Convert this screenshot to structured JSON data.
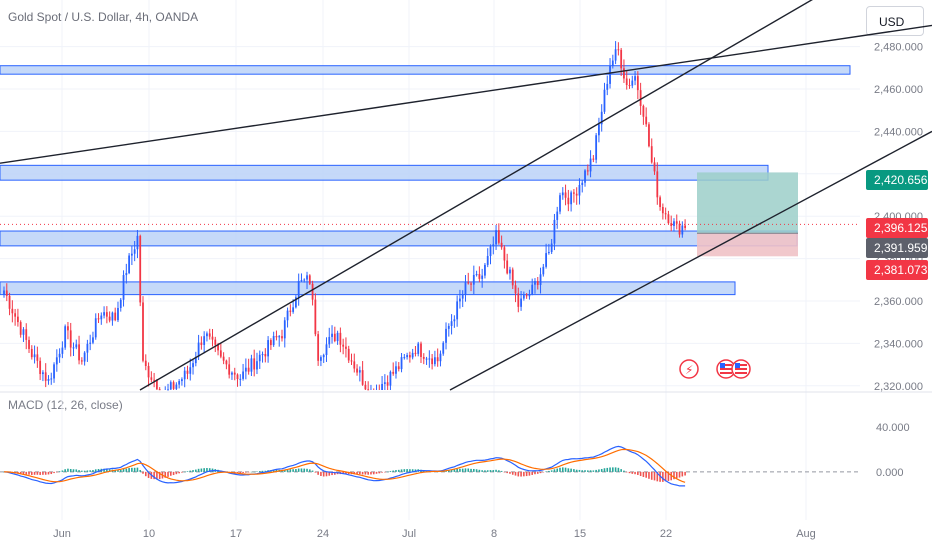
{
  "header": {
    "title": "Gold Spot / U.S. Dollar, 4h, OANDA",
    "currency_button": "USD"
  },
  "indicator": {
    "title": "MACD (12, 26, close)"
  },
  "colors": {
    "up": "#2962ff",
    "down": "#f23645",
    "zone_fill": "#bbd2f8",
    "zone_stroke": "#2962ff",
    "trendline": "#1e222d",
    "macd_line": "#2962ff",
    "signal_line": "#ff6d00",
    "target_box": "#9ccfc9",
    "stop_box": "#f0c2c6",
    "price_tag_green": "#089981",
    "price_tag_red": "#f23645",
    "price_tag_gray": "#5d606b"
  },
  "chart_data": [
    {
      "type": "candlestick",
      "symbol": "Gold Spot / U.S. Dollar",
      "timeframe": "4h",
      "x_tick_labels": [
        "Jun",
        "10",
        "17",
        "24",
        "Jul",
        "8",
        "15",
        "22",
        "Aug"
      ],
      "y_tick_labels": [
        "2,320.000",
        "2,340.000",
        "2,360.000",
        "2,380.000",
        "2,400.000",
        "2,420.000",
        "2,440.000",
        "2,460.000",
        "2,480.000"
      ],
      "ylim": [
        2318,
        2502
      ],
      "anchors": [
        {
          "i": 0,
          "p": 2365
        },
        {
          "i": 5,
          "p": 2350
        },
        {
          "i": 10,
          "p": 2335
        },
        {
          "i": 16,
          "p": 2322
        },
        {
          "i": 22,
          "p": 2345
        },
        {
          "i": 28,
          "p": 2332
        },
        {
          "i": 35,
          "p": 2355
        },
        {
          "i": 40,
          "p": 2352
        },
        {
          "i": 44,
          "p": 2375
        },
        {
          "i": 48,
          "p": 2390
        },
        {
          "i": 50,
          "p": 2330
        },
        {
          "i": 58,
          "p": 2316
        },
        {
          "i": 66,
          "p": 2326
        },
        {
          "i": 72,
          "p": 2345
        },
        {
          "i": 78,
          "p": 2332
        },
        {
          "i": 85,
          "p": 2324
        },
        {
          "i": 92,
          "p": 2334
        },
        {
          "i": 100,
          "p": 2345
        },
        {
          "i": 106,
          "p": 2368
        },
        {
          "i": 110,
          "p": 2370
        },
        {
          "i": 113,
          "p": 2335
        },
        {
          "i": 120,
          "p": 2345
        },
        {
          "i": 126,
          "p": 2330
        },
        {
          "i": 132,
          "p": 2316
        },
        {
          "i": 140,
          "p": 2326
        },
        {
          "i": 148,
          "p": 2338
        },
        {
          "i": 156,
          "p": 2332
        },
        {
          "i": 160,
          "p": 2348
        },
        {
          "i": 166,
          "p": 2366
        },
        {
          "i": 172,
          "p": 2372
        },
        {
          "i": 177,
          "p": 2390
        },
        {
          "i": 181,
          "p": 2376
        },
        {
          "i": 185,
          "p": 2358
        },
        {
          "i": 190,
          "p": 2365
        },
        {
          "i": 196,
          "p": 2382
        },
        {
          "i": 200,
          "p": 2412
        },
        {
          "i": 204,
          "p": 2408
        },
        {
          "i": 208,
          "p": 2418
        },
        {
          "i": 212,
          "p": 2428
        },
        {
          "i": 215,
          "p": 2450
        },
        {
          "i": 218,
          "p": 2472
        },
        {
          "i": 221,
          "p": 2478
        },
        {
          "i": 224,
          "p": 2462
        },
        {
          "i": 227,
          "p": 2466
        },
        {
          "i": 230,
          "p": 2450
        },
        {
          "i": 233,
          "p": 2425
        },
        {
          "i": 236,
          "p": 2405
        },
        {
          "i": 239,
          "p": 2400
        },
        {
          "i": 242,
          "p": 2394
        },
        {
          "i": 245,
          "p": 2396
        }
      ],
      "horizontal_zones": [
        {
          "top": 2471,
          "bottom": 2467,
          "x_end": "chart-edge"
        },
        {
          "top": 2424,
          "bottom": 2417,
          "x_end": "Jul 22"
        },
        {
          "top": 2393,
          "bottom": 2386,
          "x_end": "Jul 23"
        },
        {
          "top": 2369,
          "bottom": 2363,
          "x_end": "Jul 26"
        }
      ],
      "trendlines": [
        {
          "x1": 0,
          "y1": 2425,
          "x2": 932,
          "y2": 2490
        },
        {
          "x1": 140,
          "y1": 2318,
          "x2": 932,
          "y2": 2535
        },
        {
          "x1": 450,
          "y1": 2318,
          "x2": 932,
          "y2": 2440
        }
      ],
      "position": {
        "entry": 2391.959,
        "target": 2420.656,
        "stop": 2381.073
      },
      "price_tags": [
        {
          "value": "2,420.656",
          "kind": "green",
          "p": 2420.656
        },
        {
          "value": "2,396.125",
          "kind": "red",
          "p": 2396.125
        },
        {
          "value": "2,391.959",
          "kind": "gray",
          "p": 2391.959
        },
        {
          "value": "2,381.073",
          "kind": "red",
          "p": 2381.073
        }
      ],
      "current_price": 2396.125
    },
    {
      "type": "macd",
      "name": "MACD (12, 26, close)",
      "y_tick_labels": [
        "40.000",
        "0.000"
      ],
      "ylim": [
        -25,
        55
      ]
    }
  ]
}
